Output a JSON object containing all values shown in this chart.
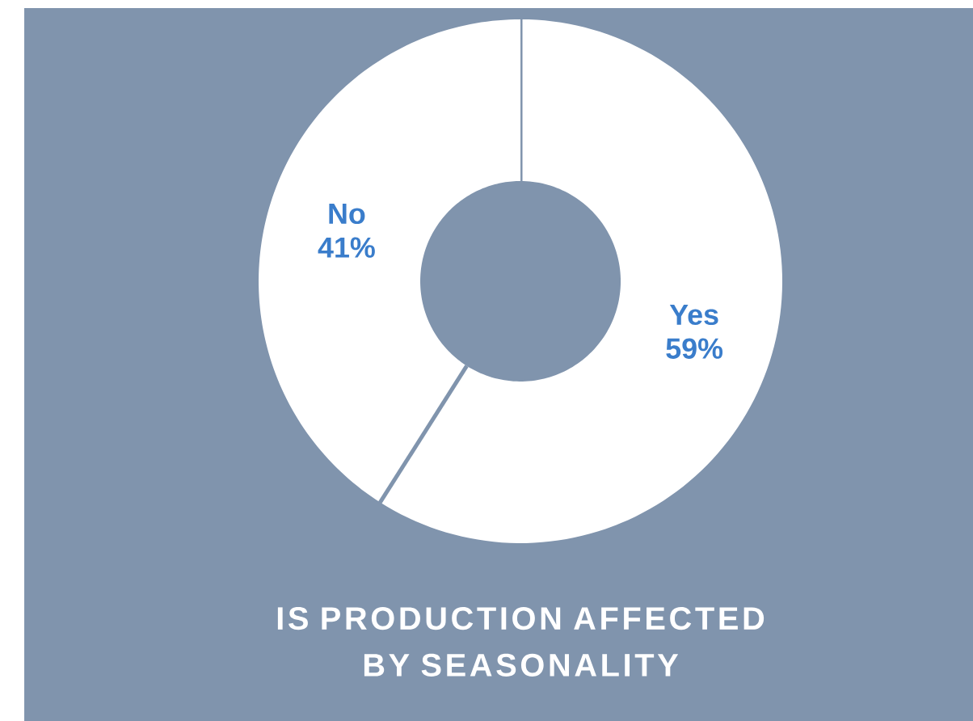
{
  "chart_data": {
    "type": "donut",
    "title": "IS PRODUCTION AFFECTED BY SEASONALITY",
    "categories": [
      "Yes",
      "No"
    ],
    "values": [
      59,
      41
    ],
    "value_labels": [
      "59%",
      "41%"
    ],
    "colors": [
      "#ffffff",
      "#ffffff"
    ]
  }
}
